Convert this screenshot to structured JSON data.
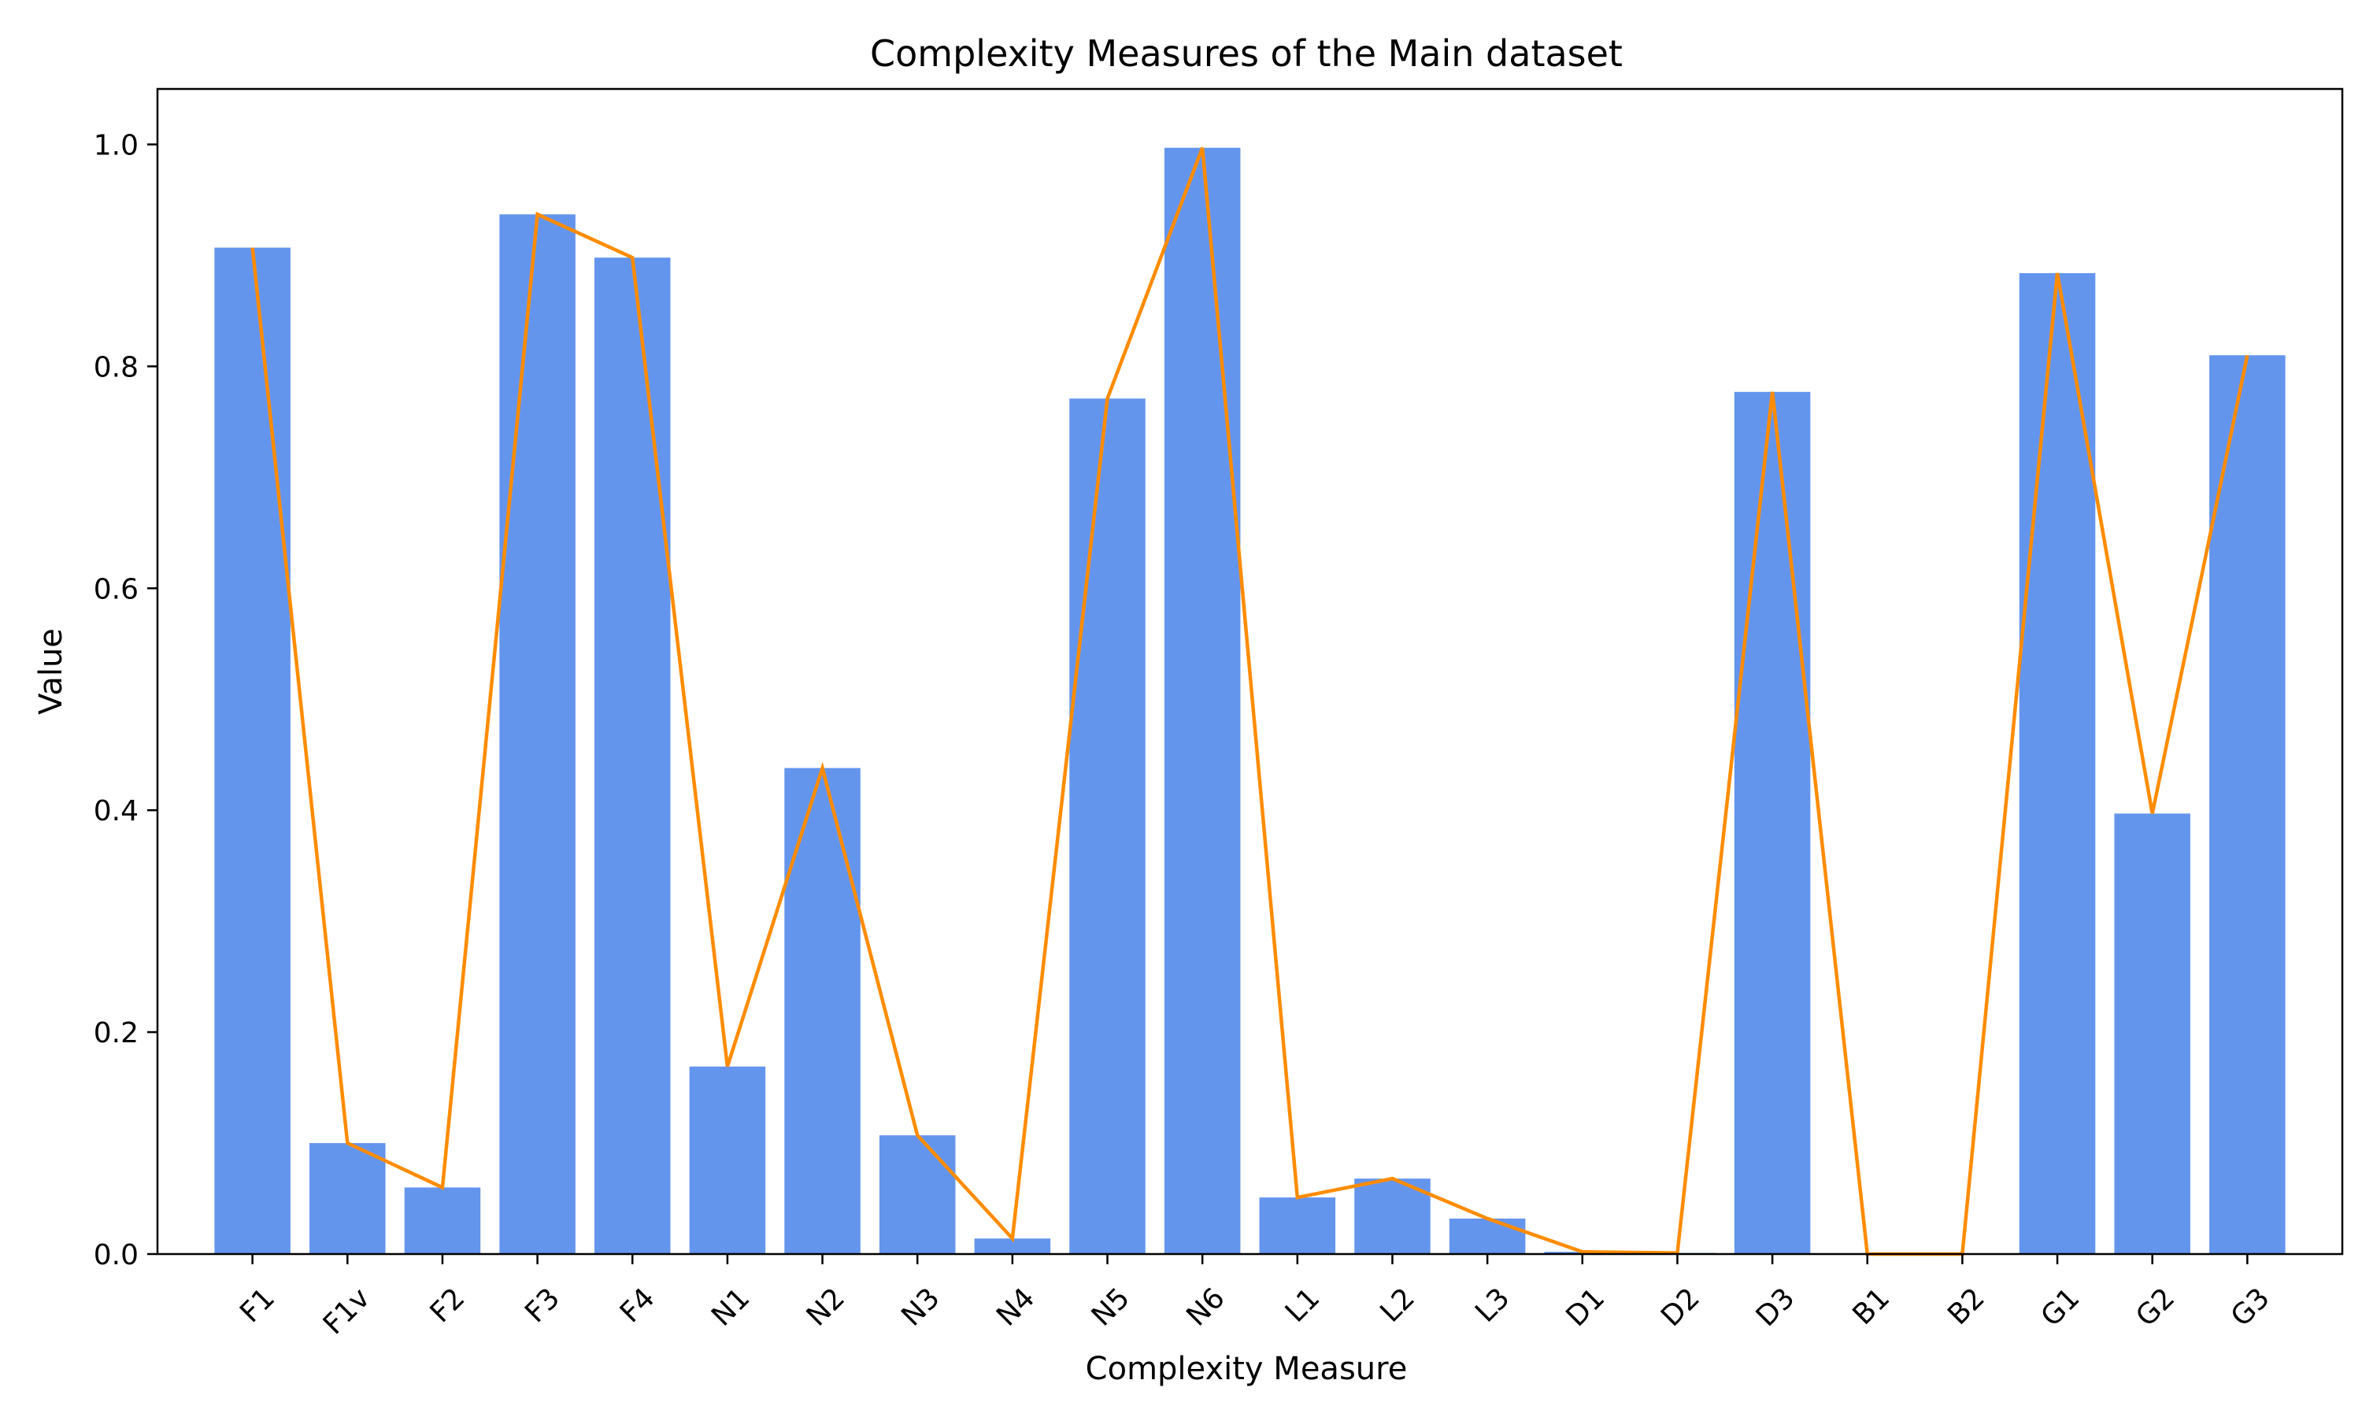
{
  "chart_data": {
    "type": "bar",
    "title": "Complexity Measures of the Main dataset",
    "xlabel": "Complexity Measure",
    "ylabel": "Value",
    "ylim": [
      0,
      1.05
    ],
    "yticks": [
      0.0,
      0.2,
      0.4,
      0.6,
      0.8,
      1.0
    ],
    "ytick_labels": [
      "0.0",
      "0.2",
      "0.4",
      "0.6",
      "0.8",
      "1.0"
    ],
    "categories": [
      "F1",
      "F1v",
      "F2",
      "F3",
      "F4",
      "N1",
      "N2",
      "N3",
      "N4",
      "N5",
      "N6",
      "L1",
      "L2",
      "L3",
      "D1",
      "D2",
      "D3",
      "B1",
      "B2",
      "G1",
      "G2",
      "G3"
    ],
    "values": [
      0.907,
      0.1,
      0.06,
      0.937,
      0.898,
      0.169,
      0.438,
      0.107,
      0.014,
      0.771,
      0.997,
      0.051,
      0.068,
      0.032,
      0.002,
      0.001,
      0.777,
      0.0,
      0.0,
      0.884,
      0.397,
      0.81
    ],
    "line_overlay": true,
    "grid": false,
    "colors": {
      "bar": "#6495ED",
      "line": "#FF8C00",
      "axis": "#000000"
    }
  }
}
